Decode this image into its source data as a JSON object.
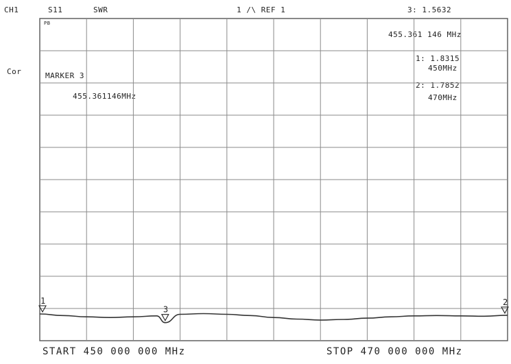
{
  "header": {
    "channel": "CH1",
    "parameter": "S11",
    "format": "SWR",
    "scale": "1 /\\ REF 1",
    "active_marker_readout": "3: 1.5632"
  },
  "side_labels": {
    "cor": "Cor",
    "pb": "PB"
  },
  "marker_box": {
    "title": "MARKER 3",
    "freq": "455.361146MHz"
  },
  "marker_list": {
    "active_freq": "455.361 146 MHz",
    "m1_value": "1: 1.8315",
    "m1_freq": "450MHz",
    "m2_value": "2: 1.7852",
    "m2_freq": "470MHz"
  },
  "footer": {
    "start": "START 450 000 000 MHz",
    "stop": "STOP 470 000 000 MHz"
  },
  "chart_data": {
    "type": "line",
    "grid": true,
    "xlim": [
      450,
      470
    ],
    "ylim": [
      1,
      11
    ],
    "series": [
      {
        "x": [
          450,
          451,
          452,
          453,
          454,
          455,
          455.36,
          456,
          457,
          458,
          459,
          460,
          461,
          462,
          463,
          464,
          465,
          466,
          467,
          468,
          469,
          470
        ],
        "y": [
          1.83,
          1.78,
          1.74,
          1.72,
          1.74,
          1.77,
          1.56,
          1.82,
          1.84,
          1.82,
          1.78,
          1.72,
          1.67,
          1.64,
          1.66,
          1.7,
          1.74,
          1.77,
          1.78,
          1.77,
          1.76,
          1.79
        ]
      }
    ],
    "markers": [
      {
        "label": "1",
        "x": 450
      },
      {
        "label": "2",
        "x": 470
      },
      {
        "label": "3",
        "x": 455.361146
      }
    ]
  },
  "colors": {
    "grid": "#8a8a8a",
    "trace": "#333333"
  }
}
